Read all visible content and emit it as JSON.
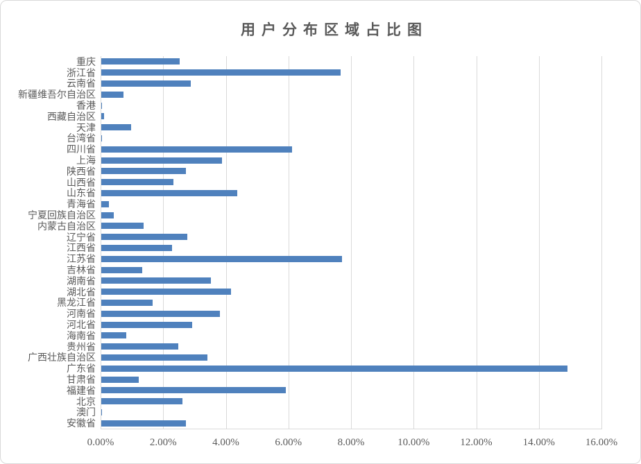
{
  "title": "用户分布区域占比图",
  "colors": {
    "bar": "#4f81bd",
    "gridline": "#d9d9d9",
    "axis_line": "#d9d9d9",
    "text": "#595959",
    "border": "#d9d9d9",
    "background": "#ffffff"
  },
  "chart_data": {
    "type": "bar",
    "orientation": "horizontal",
    "title": "用户分布区域占比图",
    "xlabel": "",
    "ylabel": "",
    "xlim": [
      0,
      16
    ],
    "x_tick_step": 2,
    "x_tick_labels": [
      "0.00%",
      "2.00%",
      "4.00%",
      "6.00%",
      "8.00%",
      "10.00%",
      "12.00%",
      "14.00%",
      "16.00%"
    ],
    "grid": true,
    "legend_position": "none",
    "value_unit": "percent",
    "categories": [
      "重庆",
      "浙江省",
      "云南省",
      "新疆维吾尔自治区",
      "香港",
      "西藏自治区",
      "天津",
      "台湾省",
      "四川省",
      "上海",
      "陕西省",
      "山西省",
      "山东省",
      "青海省",
      "宁夏回族自治区",
      "内蒙古自治区",
      "辽宁省",
      "江西省",
      "江苏省",
      "吉林省",
      "湖南省",
      "湖北省",
      "黑龙江省",
      "河南省",
      "河北省",
      "海南省",
      "贵州省",
      "广西壮族自治区",
      "广东省",
      "甘肃省",
      "福建省",
      "北京",
      "澳门",
      "安徽省"
    ],
    "values": [
      2.5,
      7.65,
      2.85,
      0.7,
      0.03,
      0.08,
      0.95,
      0.01,
      6.1,
      3.85,
      2.7,
      2.3,
      4.35,
      0.25,
      0.4,
      1.35,
      2.75,
      2.25,
      7.7,
      1.3,
      3.5,
      4.15,
      1.65,
      3.8,
      2.9,
      0.8,
      2.45,
      3.4,
      14.9,
      1.2,
      5.9,
      2.6,
      0.01,
      2.7
    ]
  }
}
